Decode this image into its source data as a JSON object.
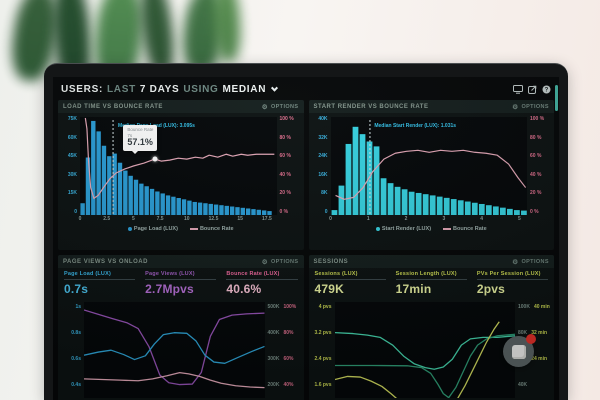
{
  "theme": {
    "screen_bg": "#060809",
    "panel_bg": "#0d1313",
    "panel_head_bg": "#151f1e",
    "axis_cyan": "#3ab4e2",
    "axis_pink": "#e0708f",
    "axis_lime": "#ccd853",
    "axis_gray_green": "#7d938c",
    "bar_blue": "#2b9fd9",
    "bar_teal": "#37d3e2",
    "bounce_pink": "#e4a8b8",
    "badge_red": "#e8312a",
    "scrollbar_teal": "#43b3a2"
  },
  "header": {
    "segments": [
      {
        "text": "USERS:",
        "emphasis": true
      },
      {
        "text": "LAST",
        "emphasis": false
      },
      {
        "text": "7 DAYS",
        "emphasis": true
      },
      {
        "text": "USING",
        "emphasis": false
      },
      {
        "text": "MEDIAN",
        "emphasis": true
      }
    ],
    "icons": [
      "display-icon",
      "export-icon",
      "help-icon"
    ]
  },
  "options_label": "OPTIONS",
  "chart_data": [
    {
      "id": "load-time-vs-bounce",
      "type": "histogram+line",
      "title": "LOAD TIME VS BOUNCE RATE",
      "xlim": [
        0,
        18.4
      ],
      "x_ticks": [
        0,
        2.5,
        5,
        7.5,
        10,
        12.5,
        15,
        17.5
      ],
      "x_tick_labels": [
        "0",
        "2.5",
        "5",
        "7.5",
        "10",
        "12.5",
        "15",
        "17.5"
      ],
      "left_axis": {
        "max": 75,
        "unit": "K",
        "ticks": [
          "75K",
          "60K",
          "45K",
          "30K",
          "15K",
          "0"
        ],
        "color": "#3ab4e2"
      },
      "right_axis": {
        "max": 100,
        "unit": "%",
        "ticks": [
          "100 %",
          "80 %",
          "60 %",
          "40 %",
          "20 %",
          "0 %"
        ],
        "color": "#e0708f"
      },
      "bars": {
        "name": "Page Load (LUX)",
        "color": "#2b9fd9",
        "start": 0,
        "step": 0.5,
        "values": [
          9,
          44,
          72,
          64,
          53,
          45,
          47,
          40,
          34,
          30,
          27,
          24,
          22,
          20,
          18,
          16.5,
          15,
          14,
          13,
          12,
          11,
          10,
          9.5,
          9,
          8.5,
          8,
          7.5,
          7,
          6.5,
          6,
          5.5,
          5,
          4.5,
          4,
          3.5,
          3
        ]
      },
      "median": {
        "x": 3.095,
        "label": "Median Page Load (LUX): 3.095s"
      },
      "line": {
        "name": "Bounce Rate",
        "color": "#e4a8b8",
        "points": [
          [
            0.5,
            99
          ],
          [
            0.65,
            88
          ],
          [
            0.8,
            55
          ],
          [
            1.0,
            28
          ],
          [
            1.3,
            17
          ],
          [
            1.7,
            20
          ],
          [
            2.2,
            28
          ],
          [
            2.8,
            37
          ],
          [
            3.4,
            43
          ],
          [
            4.2,
            47
          ],
          [
            5.0,
            50
          ],
          [
            6.0,
            53
          ],
          [
            7.0,
            57.1
          ],
          [
            7.6,
            55
          ],
          [
            8.4,
            56
          ],
          [
            9.2,
            58
          ],
          [
            10.0,
            57
          ],
          [
            10.8,
            59
          ],
          [
            11.5,
            58
          ],
          [
            12.1,
            61
          ],
          [
            12.9,
            59
          ],
          [
            13.7,
            62
          ],
          [
            14.3,
            60
          ],
          [
            15.1,
            62
          ],
          [
            15.7,
            61
          ],
          [
            16.5,
            62
          ],
          [
            17.5,
            62
          ],
          [
            18.2,
            62
          ]
        ]
      },
      "tooltip": {
        "series": "Bounce Rate",
        "x_label": "7s",
        "value": "57.1%",
        "x": 7,
        "y": 57.1
      },
      "legend": [
        {
          "type": "dot",
          "color": "#2b9fd9",
          "label": "Page Load (LUX)"
        },
        {
          "type": "line",
          "color": "#e4a8b8",
          "label": "Bounce Rate"
        }
      ]
    },
    {
      "id": "start-render-vs-bounce",
      "type": "histogram+line",
      "title": "START RENDER VS BOUNCE RATE",
      "xlim": [
        0,
        5.2
      ],
      "x_ticks": [
        0,
        1,
        2,
        3,
        4,
        5
      ],
      "x_tick_labels": [
        "0",
        "1",
        "2",
        "3",
        "4",
        "5"
      ],
      "left_axis": {
        "max": 40,
        "unit": "K",
        "ticks": [
          "40K",
          "32K",
          "24K",
          "16K",
          "8K",
          "0"
        ],
        "color": "#3ab4e2"
      },
      "right_axis": {
        "max": 100,
        "unit": "%",
        "ticks": [
          "100 %",
          "80 %",
          "60 %",
          "40 %",
          "20 %",
          "0 %"
        ],
        "color": "#e0708f"
      },
      "bars": {
        "name": "Start Render (LUX)",
        "color": "#37d3e2",
        "start": 0,
        "step": 0.1857,
        "values": [
          2,
          12,
          29,
          36,
          33,
          30,
          28,
          15,
          13,
          11.5,
          10.5,
          9.5,
          9,
          8.5,
          8,
          7.5,
          7,
          6.5,
          6,
          5.5,
          5,
          4.5,
          4,
          3.5,
          3,
          2.5,
          2,
          1.8
        ]
      },
      "median": {
        "x": 1.031,
        "label": "Median Start Render (LUX): 1.031s"
      },
      "line": {
        "name": "Bounce Rate",
        "color": "#e4a8b8",
        "points": [
          [
            0.12,
            20
          ],
          [
            0.35,
            16
          ],
          [
            0.6,
            18
          ],
          [
            0.85,
            28
          ],
          [
            1.1,
            44
          ],
          [
            1.4,
            57
          ],
          [
            1.7,
            63
          ],
          [
            2.0,
            65
          ],
          [
            2.3,
            66
          ],
          [
            2.6,
            64
          ],
          [
            2.9,
            66
          ],
          [
            3.2,
            65
          ],
          [
            3.5,
            66
          ],
          [
            3.8,
            64
          ],
          [
            4.1,
            63
          ],
          [
            4.4,
            61
          ],
          [
            4.7,
            52
          ],
          [
            4.95,
            38
          ],
          [
            5.15,
            28
          ]
        ]
      },
      "legend": [
        {
          "type": "dot",
          "color": "#37d3e2",
          "label": "Start Render (LUX)"
        },
        {
          "type": "line",
          "color": "#e4a8b8",
          "label": "Bounce Rate"
        }
      ]
    },
    {
      "id": "page-views-vs-onload",
      "type": "multi-line",
      "title": "PAGE VIEWS VS ONLOAD",
      "stats": [
        {
          "label": "Page Load (LUX)",
          "value": "0.7s",
          "color": "#3ab9ea",
          "value_color": "#4cc6f2"
        },
        {
          "label": "Page Views (LUX)",
          "value": "2.7Mpvs",
          "color": "#a35fc5",
          "value_color": "#b770d8"
        },
        {
          "label": "Bounce Rate (LUX)",
          "value": "40.6%",
          "color": "#f2699f",
          "value_color": "#f9c3d6"
        }
      ],
      "left_axis": {
        "ticks": [
          "1s",
          "0.8s",
          "0.6s",
          "0.4s"
        ],
        "color": "#3ab4e2"
      },
      "right_axis": {
        "rows": [
          [
            "500K",
            "100%"
          ],
          [
            "400K",
            "80%"
          ],
          [
            "300K",
            "60%"
          ],
          [
            "200K",
            "40%"
          ]
        ],
        "k_color": "#7d938c",
        "unit_color": "#e0708f"
      },
      "series": [
        {
          "name": "Page Views",
          "unit": "K",
          "color": "#9a55bb",
          "range": [
            151,
            523
          ],
          "points": [
            [
              0,
              492
            ],
            [
              8,
              475
            ],
            [
              16,
              458
            ],
            [
              24,
              442
            ],
            [
              30,
              420
            ],
            [
              36,
              350
            ],
            [
              42,
              240
            ],
            [
              47,
              210
            ],
            [
              53,
              203
            ],
            [
              60,
              205
            ],
            [
              65,
              250
            ],
            [
              70,
              390
            ],
            [
              75,
              455
            ],
            [
              82,
              472
            ],
            [
              90,
              477
            ],
            [
              100,
              480
            ]
          ]
        },
        {
          "name": "Page Load",
          "unit": "s",
          "color": "#2fa8dc",
          "range": [
            0.277,
            1.046
          ],
          "points": [
            [
              0,
              0.62
            ],
            [
              8,
              0.645
            ],
            [
              15,
              0.66
            ],
            [
              22,
              0.625
            ],
            [
              28,
              0.585
            ],
            [
              34,
              0.615
            ],
            [
              39,
              0.71
            ],
            [
              44,
              0.785
            ],
            [
              50,
              0.8
            ],
            [
              57,
              0.795
            ],
            [
              62,
              0.735
            ],
            [
              67,
              0.62
            ],
            [
              72,
              0.565
            ],
            [
              78,
              0.555
            ],
            [
              85,
              0.6
            ],
            [
              93,
              0.65
            ],
            [
              100,
              0.69
            ]
          ]
        },
        {
          "name": "Bounce Rate",
          "unit": "%",
          "color": "#e7abbc",
          "range": [
            27.7,
            104.6
          ],
          "points": [
            [
              0,
              43
            ],
            [
              10,
              42.5
            ],
            [
              20,
              42
            ],
            [
              30,
              41.5
            ],
            [
              38,
              43
            ],
            [
              46,
              45.5
            ],
            [
              53,
              48
            ],
            [
              58,
              47
            ],
            [
              64,
              45
            ],
            [
              70,
              42
            ],
            [
              76,
              39.5
            ],
            [
              84,
              37.5
            ],
            [
              92,
              36.5
            ],
            [
              100,
              36
            ]
          ]
        }
      ]
    },
    {
      "id": "sessions",
      "type": "multi-line",
      "title": "SESSIONS",
      "stats": [
        {
          "label": "Sessions (LUX)",
          "value": "479K",
          "color": "#ccd853",
          "value_color": "#e9f2a2"
        },
        {
          "label": "Session Length (LUX)",
          "value": "17min",
          "color": "#ccd853",
          "value_color": "#e9f2a2"
        },
        {
          "label": "PVs Per Session (LUX)",
          "value": "2pvs",
          "color": "#ccd853",
          "value_color": "#e9f2a2"
        }
      ],
      "left_axis": {
        "ticks": [
          "4 pvs",
          "3.2 pvs",
          "2.4 pvs",
          "1.6 pvs"
        ],
        "color": "#ccd853"
      },
      "right_axis": {
        "rows": [
          [
            "100K",
            "40 min"
          ],
          [
            "80K",
            "32 min"
          ],
          [
            "60K",
            "24 min"
          ],
          [
            "40K",
            ""
          ]
        ],
        "k_color": "#7d938c",
        "unit_color": "#ccd853"
      },
      "series": [
        {
          "name": "Sessions",
          "unit": "pvs-scale",
          "color": "#46d8b0",
          "range": [
            1.11,
            4.18
          ],
          "points": [
            [
              0,
              3.2
            ],
            [
              10,
              3.17
            ],
            [
              18,
              3.12
            ],
            [
              25,
              3.05
            ],
            [
              32,
              2.8
            ],
            [
              38,
              2.45
            ],
            [
              44,
              2.2
            ],
            [
              50,
              2.08
            ],
            [
              55,
              2.03
            ],
            [
              60,
              2.1
            ],
            [
              65,
              2.35
            ],
            [
              70,
              2.8
            ],
            [
              75,
              3.0
            ],
            [
              82,
              3.05
            ],
            [
              90,
              3.05
            ],
            [
              100,
              3.1
            ]
          ]
        },
        {
          "name": "Session Length",
          "unit": "pvs-scale",
          "color": "#2f9e78",
          "range": [
            1.11,
            4.18
          ],
          "points": [
            [
              0,
              2.15
            ],
            [
              20,
              2.15
            ],
            [
              40,
              2.14
            ],
            [
              48,
              2.08
            ],
            [
              53,
              1.9
            ],
            [
              57,
              1.55
            ],
            [
              60,
              1.25
            ],
            [
              63,
              1.12
            ],
            [
              67,
              1.45
            ],
            [
              71,
              1.95
            ],
            [
              75,
              2.45
            ],
            [
              79,
              2.8
            ],
            [
              84,
              3.0
            ],
            [
              90,
              3.1
            ],
            [
              100,
              3.15
            ]
          ]
        },
        {
          "name": "PVs Per Session",
          "unit": "pvs-scale",
          "color": "#d5dd60",
          "range": [
            1.11,
            4.18
          ],
          "points": [
            [
              0,
              1.7
            ],
            [
              7,
              1.8
            ],
            [
              14,
              1.78
            ],
            [
              20,
              1.65
            ],
            [
              26,
              1.48
            ],
            [
              31,
              1.25
            ],
            [
              36,
              1.0
            ],
            [
              40,
              0.75
            ],
            [
              44,
              0.55
            ],
            [
              55,
              0.45
            ],
            [
              60,
              0.55
            ],
            [
              66,
              0.9
            ],
            [
              72,
              1.5
            ],
            [
              78,
              2.2
            ],
            [
              84,
              2.9
            ],
            [
              88,
              3.3
            ],
            [
              91,
              3.55
            ]
          ]
        }
      ]
    }
  ]
}
